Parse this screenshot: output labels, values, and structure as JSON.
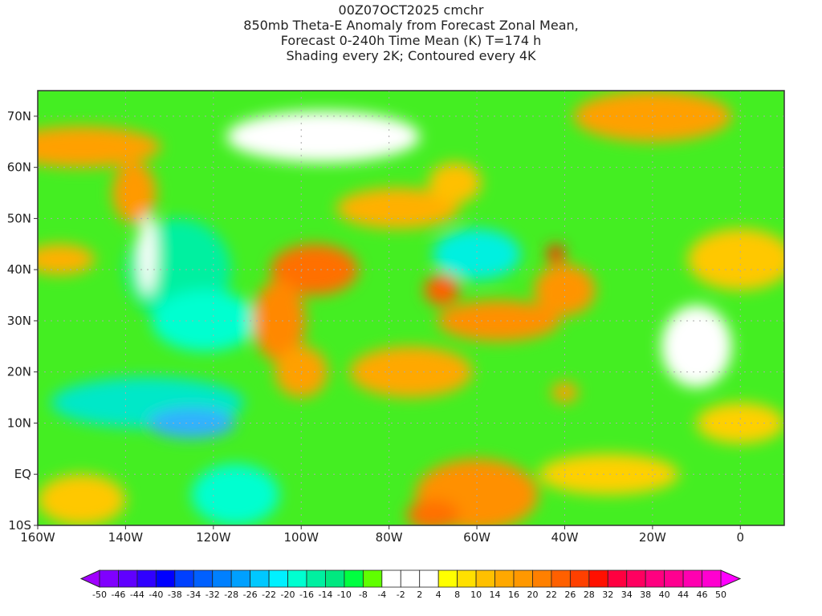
{
  "title": {
    "line1": "00Z07OCT2025 cmchr",
    "line2": "850mb Theta-E Anomaly from Forecast Zonal Mean,",
    "line3": "Forecast 0-240h Time Mean (K) T=174 h",
    "line4": "Shading every 2K; Contoured every 4K"
  },
  "map": {
    "lon_range": [
      -160,
      10
    ],
    "lat_range": [
      -10,
      75
    ],
    "x_ticks": [
      {
        "v": -160,
        "label": "160W"
      },
      {
        "v": -140,
        "label": "140W"
      },
      {
        "v": -120,
        "label": "120W"
      },
      {
        "v": -100,
        "label": "100W"
      },
      {
        "v": -80,
        "label": "80W"
      },
      {
        "v": -60,
        "label": "60W"
      },
      {
        "v": -40,
        "label": "40W"
      },
      {
        "v": -20,
        "label": "20W"
      },
      {
        "v": 0,
        "label": "0"
      }
    ],
    "y_ticks": [
      {
        "v": 70,
        "label": "70N"
      },
      {
        "v": 60,
        "label": "60N"
      },
      {
        "v": 50,
        "label": "50N"
      },
      {
        "v": 40,
        "label": "40N"
      },
      {
        "v": 30,
        "label": "30N"
      },
      {
        "v": 20,
        "label": "20N"
      },
      {
        "v": 10,
        "label": "10N"
      },
      {
        "v": 0,
        "label": "EQ"
      },
      {
        "v": -10,
        "label": "10S"
      }
    ],
    "features": [
      {
        "lon": -150,
        "lat": 64,
        "rx": 18,
        "ry": 4,
        "c": "#ffa000"
      },
      {
        "lon": -138,
        "lat": 55,
        "rx": 5,
        "ry": 6,
        "c": "#ff9a00"
      },
      {
        "lon": -155,
        "lat": 42,
        "rx": 8,
        "ry": 3,
        "c": "#ffb000"
      },
      {
        "lon": -128,
        "lat": 40,
        "rx": 12,
        "ry": 10,
        "c": "#00f0a0"
      },
      {
        "lon": -122,
        "lat": 30,
        "rx": 12,
        "ry": 6,
        "c": "#00ffd0"
      },
      {
        "lon": -135,
        "lat": 14,
        "rx": 22,
        "ry": 5,
        "c": "#00e8c8"
      },
      {
        "lon": -125,
        "lat": 10,
        "rx": 10,
        "ry": 3,
        "c": "#30b0ff"
      },
      {
        "lon": -97,
        "lat": 40,
        "rx": 10,
        "ry": 5,
        "c": "#ff7000"
      },
      {
        "lon": -105,
        "lat": 30,
        "rx": 6,
        "ry": 8,
        "c": "#ff8800"
      },
      {
        "lon": -100,
        "lat": 20,
        "rx": 6,
        "ry": 5,
        "c": "#ffa000"
      },
      {
        "lon": -78,
        "lat": 52,
        "rx": 14,
        "ry": 4,
        "c": "#ffb000"
      },
      {
        "lon": -65,
        "lat": 57,
        "rx": 6,
        "ry": 4,
        "c": "#ffc000"
      },
      {
        "lon": -68,
        "lat": 36,
        "rx": 4,
        "ry": 3,
        "c": "#ff6000"
      },
      {
        "lon": -55,
        "lat": 30,
        "rx": 14,
        "ry": 4,
        "c": "#ff9000"
      },
      {
        "lon": -40,
        "lat": 36,
        "rx": 7,
        "ry": 5,
        "c": "#ff9400"
      },
      {
        "lon": -42,
        "lat": 43,
        "rx": 2,
        "ry": 2,
        "c": "#ff3000"
      },
      {
        "lon": -60,
        "lat": 43,
        "rx": 10,
        "ry": 5,
        "c": "#00f0e0"
      },
      {
        "lon": -75,
        "lat": 20,
        "rx": 14,
        "ry": 5,
        "c": "#ffa800"
      },
      {
        "lon": -40,
        "lat": 16,
        "rx": 3,
        "ry": 2,
        "c": "#ffa000"
      },
      {
        "lon": -60,
        "lat": -4,
        "rx": 14,
        "ry": 7,
        "c": "#ff9000"
      },
      {
        "lon": -70,
        "lat": -8,
        "rx": 6,
        "ry": 3,
        "c": "#ff7000"
      },
      {
        "lon": -30,
        "lat": 0,
        "rx": 16,
        "ry": 4,
        "c": "#ffd000"
      },
      {
        "lon": -150,
        "lat": -5,
        "rx": 10,
        "ry": 5,
        "c": "#ffc800"
      },
      {
        "lon": -115,
        "lat": -4,
        "rx": 10,
        "ry": 6,
        "c": "#00ffd0"
      },
      {
        "lon": -20,
        "lat": 70,
        "rx": 18,
        "ry": 5,
        "c": "#ffa000"
      },
      {
        "lon": 0,
        "lat": 42,
        "rx": 12,
        "ry": 6,
        "c": "#ffc800"
      },
      {
        "lon": 0,
        "lat": 10,
        "rx": 10,
        "ry": 4,
        "c": "#ffd000"
      },
      {
        "lon": -95,
        "lat": 66,
        "rx": 22,
        "ry": 5,
        "c": "#ffffff"
      },
      {
        "lon": -10,
        "lat": 25,
        "rx": 8,
        "ry": 8,
        "c": "#ffffff"
      },
      {
        "lon": -135,
        "lat": 43,
        "rx": 2,
        "ry": 8,
        "c": "#ffffff"
      }
    ]
  },
  "colorbar": {
    "labels": [
      "-50",
      "-46",
      "-44",
      "-40",
      "-38",
      "-34",
      "-32",
      "-28",
      "-26",
      "-22",
      "-20",
      "-16",
      "-14",
      "-10",
      "-8",
      "-4",
      "-2",
      "2",
      "4",
      "8",
      "10",
      "14",
      "16",
      "20",
      "22",
      "26",
      "28",
      "32",
      "34",
      "38",
      "40",
      "44",
      "46",
      "50"
    ],
    "colors": [
      "#8000ff",
      "#6000ff",
      "#3000ff",
      "#0000ff",
      "#0040ff",
      "#0060ff",
      "#0080ff",
      "#00a0ff",
      "#00c8ff",
      "#00f0ff",
      "#00ffd0",
      "#00f0a0",
      "#00e880",
      "#00ff40",
      "#60ff00",
      "#ffffff",
      "#ffffff",
      "#ffffff",
      "#ffff00",
      "#ffe000",
      "#ffc000",
      "#ffa800",
      "#ff9800",
      "#ff8000",
      "#ff6000",
      "#ff4000",
      "#ff1000",
      "#ff0040",
      "#ff0060",
      "#ff0080",
      "#ff0090",
      "#ff00b0",
      "#ff00d0"
    ],
    "under_color": "#a000ff",
    "over_color": "#ff00ff",
    "base_color": "#44ee22"
  }
}
